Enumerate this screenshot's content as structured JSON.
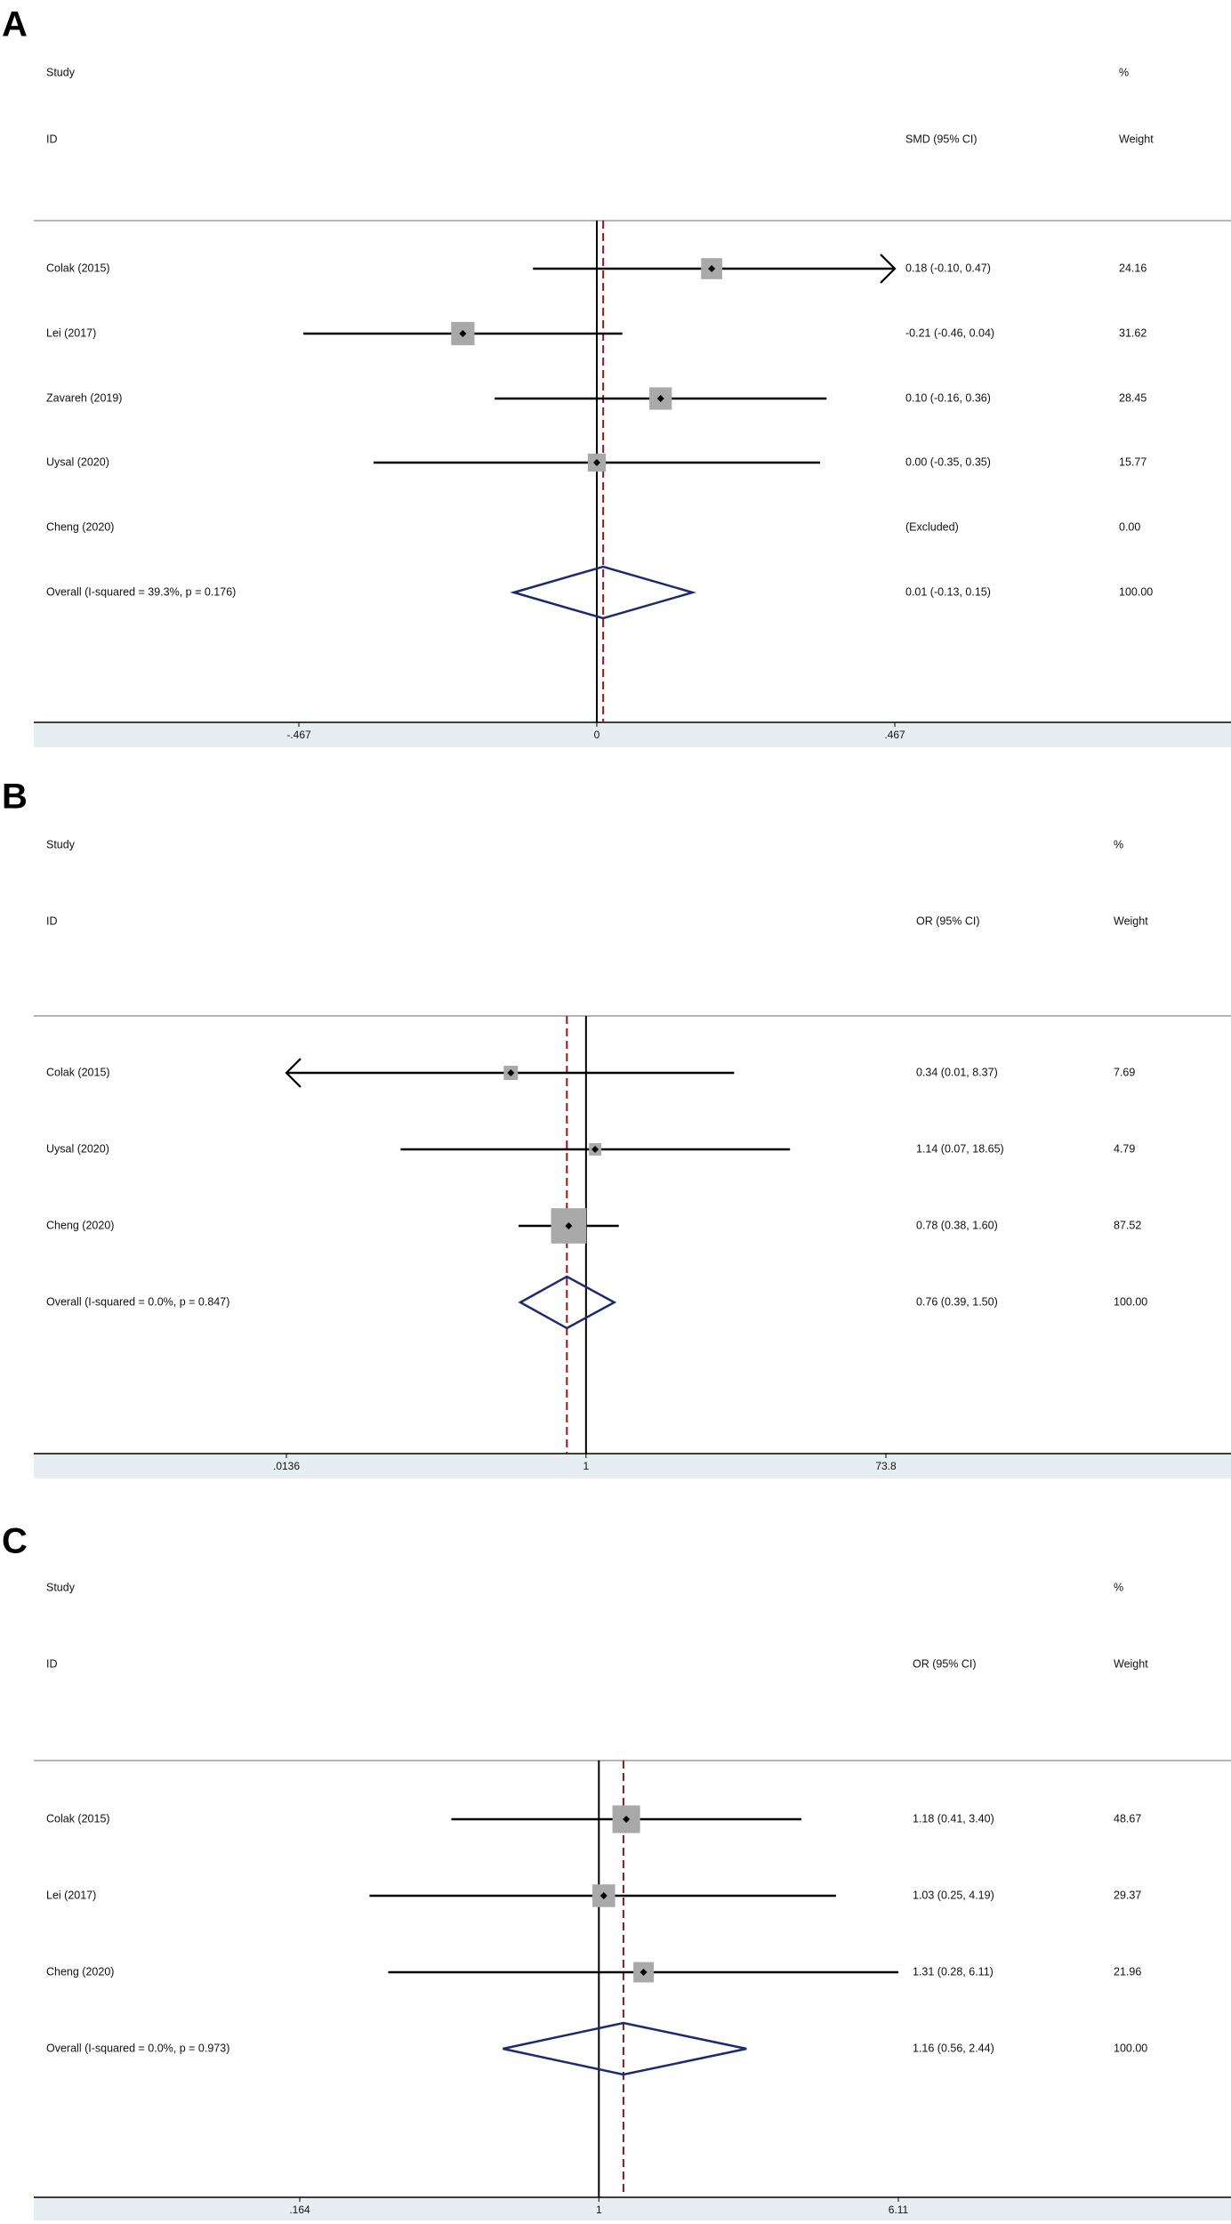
{
  "panels": [
    {
      "label": "A",
      "header": {
        "study": "Study",
        "id": "ID",
        "measure": "SMD (95% CI)",
        "pct": "%",
        "weight": "Weight"
      },
      "scale": "linear",
      "null_value": 0,
      "pooled": 0.01,
      "range": [
        -0.467,
        0.467
      ],
      "ticks": [
        "-.467",
        "0",
        ".467"
      ],
      "rows": [
        {
          "name": "Colak (2015)",
          "est": 0.18,
          "lo": -0.1,
          "hi": 0.47,
          "ci": "0.18 (-0.10, 0.47)",
          "w": "24.16",
          "weight": 24.16
        },
        {
          "name": "Lei (2017)",
          "est": -0.21,
          "lo": -0.46,
          "hi": 0.04,
          "ci": "-0.21 (-0.46, 0.04)",
          "w": "31.62",
          "weight": 31.62
        },
        {
          "name": "Zavareh (2019)",
          "est": 0.1,
          "lo": -0.16,
          "hi": 0.36,
          "ci": "0.10 (-0.16, 0.36)",
          "w": "28.45",
          "weight": 28.45
        },
        {
          "name": "Uysal (2020)",
          "est": 0.0,
          "lo": -0.35,
          "hi": 0.35,
          "ci": "0.00 (-0.35, 0.35)",
          "w": "15.77",
          "weight": 15.77
        },
        {
          "name": "Cheng (2020)",
          "est": null,
          "lo": null,
          "hi": null,
          "ci": "(Excluded)",
          "w": "0.00",
          "weight": 0
        },
        {
          "name": "Overall  (I-squared = 39.3%, p = 0.176)",
          "overall": true,
          "est": 0.01,
          "lo": -0.13,
          "hi": 0.15,
          "ci": "0.01 (-0.13, 0.15)",
          "w": "100.00",
          "weight": 100
        }
      ]
    },
    {
      "label": "B",
      "header": {
        "study": "Study",
        "id": "ID",
        "measure": "OR (95% CI)",
        "pct": "%",
        "weight": "Weight"
      },
      "scale": "log",
      "null_value": 1,
      "pooled": 0.76,
      "range": [
        0.0136,
        73.8
      ],
      "ticks": [
        ".0136",
        "1",
        "73.8"
      ],
      "rows": [
        {
          "name": "Colak (2015)",
          "est": 0.34,
          "lo": 0.01,
          "hi": 8.37,
          "ci": "0.34 (0.01, 8.37)",
          "w": "7.69",
          "weight": 7.69
        },
        {
          "name": "Uysal (2020)",
          "est": 1.14,
          "lo": 0.07,
          "hi": 18.65,
          "ci": "1.14 (0.07, 18.65)",
          "w": "4.79",
          "weight": 4.79
        },
        {
          "name": "Cheng (2020)",
          "est": 0.78,
          "lo": 0.38,
          "hi": 1.6,
          "ci": "0.78 (0.38, 1.60)",
          "w": "87.52",
          "weight": 87.52
        },
        {
          "name": "Overall  (I-squared = 0.0%, p = 0.847)",
          "overall": true,
          "est": 0.76,
          "lo": 0.39,
          "hi": 1.5,
          "ci": "0.76 (0.39, 1.50)",
          "w": "100.00",
          "weight": 100
        }
      ]
    },
    {
      "label": "C",
      "header": {
        "study": "Study",
        "id": "ID",
        "measure": "OR (95% CI)",
        "pct": "%",
        "weight": "Weight"
      },
      "scale": "log",
      "null_value": 1,
      "pooled": 1.16,
      "range": [
        0.164,
        6.11
      ],
      "ticks": [
        ".164",
        "1",
        "6.11"
      ],
      "rows": [
        {
          "name": "Colak (2015)",
          "est": 1.18,
          "lo": 0.41,
          "hi": 3.4,
          "ci": "1.18 (0.41, 3.40)",
          "w": "48.67",
          "weight": 48.67
        },
        {
          "name": "Lei (2017)",
          "est": 1.03,
          "lo": 0.25,
          "hi": 4.19,
          "ci": "1.03 (0.25, 4.19)",
          "w": "29.37",
          "weight": 29.37
        },
        {
          "name": "Cheng (2020)",
          "est": 1.31,
          "lo": 0.28,
          "hi": 6.11,
          "ci": "1.31 (0.28, 6.11)",
          "w": "21.96",
          "weight": 21.96
        },
        {
          "name": "Overall  (I-squared = 0.0%, p = 0.973)",
          "overall": true,
          "est": 1.16,
          "lo": 0.56,
          "hi": 2.44,
          "ci": "1.16 (0.56, 2.44)",
          "w": "100.00",
          "weight": 100
        }
      ]
    }
  ],
  "chart_data": [
    {
      "type": "forest",
      "panel": "A",
      "measure": "SMD (95% CI)",
      "null_value": 0,
      "xlim": [
        -0.467,
        0.467
      ],
      "x_tick_labels": [
        "-.467",
        "0",
        ".467"
      ],
      "studies": [
        {
          "name": "Colak (2015)",
          "estimate": 0.18,
          "ci_low": -0.1,
          "ci_high": 0.47,
          "weight": 24.16
        },
        {
          "name": "Lei (2017)",
          "estimate": -0.21,
          "ci_low": -0.46,
          "ci_high": 0.04,
          "weight": 31.62
        },
        {
          "name": "Zavareh (2019)",
          "estimate": 0.1,
          "ci_low": -0.16,
          "ci_high": 0.36,
          "weight": 28.45
        },
        {
          "name": "Uysal (2020)",
          "estimate": 0.0,
          "ci_low": -0.35,
          "ci_high": 0.35,
          "weight": 15.77
        },
        {
          "name": "Cheng (2020)",
          "estimate": null,
          "ci_low": null,
          "ci_high": null,
          "weight": 0.0,
          "note": "(Excluded)"
        }
      ],
      "overall": {
        "estimate": 0.01,
        "ci_low": -0.13,
        "ci_high": 0.15,
        "weight": 100.0,
        "i_squared": "39.3%",
        "p": "0.176"
      }
    },
    {
      "type": "forest",
      "panel": "B",
      "measure": "OR (95% CI)",
      "null_value": 1,
      "log_scale": true,
      "xlim": [
        0.0136,
        73.8
      ],
      "x_tick_labels": [
        ".0136",
        "1",
        "73.8"
      ],
      "studies": [
        {
          "name": "Colak (2015)",
          "estimate": 0.34,
          "ci_low": 0.01,
          "ci_high": 8.37,
          "weight": 7.69
        },
        {
          "name": "Uysal (2020)",
          "estimate": 1.14,
          "ci_low": 0.07,
          "ci_high": 18.65,
          "weight": 4.79
        },
        {
          "name": "Cheng (2020)",
          "estimate": 0.78,
          "ci_low": 0.38,
          "ci_high": 1.6,
          "weight": 87.52
        }
      ],
      "overall": {
        "estimate": 0.76,
        "ci_low": 0.39,
        "ci_high": 1.5,
        "weight": 100.0,
        "i_squared": "0.0%",
        "p": "0.847"
      }
    },
    {
      "type": "forest",
      "panel": "C",
      "measure": "OR (95% CI)",
      "null_value": 1,
      "log_scale": true,
      "xlim": [
        0.164,
        6.11
      ],
      "x_tick_labels": [
        ".164",
        "1",
        "6.11"
      ],
      "studies": [
        {
          "name": "Colak (2015)",
          "estimate": 1.18,
          "ci_low": 0.41,
          "ci_high": 3.4,
          "weight": 48.67
        },
        {
          "name": "Lei (2017)",
          "estimate": 1.03,
          "ci_low": 0.25,
          "ci_high": 4.19,
          "weight": 29.37
        },
        {
          "name": "Cheng (2020)",
          "estimate": 1.31,
          "ci_low": 0.28,
          "ci_high": 6.11,
          "weight": 21.96
        }
      ],
      "overall": {
        "estimate": 1.16,
        "ci_low": 0.56,
        "ci_high": 2.44,
        "weight": 100.0,
        "i_squared": "0.0%",
        "p": "0.973"
      }
    }
  ],
  "colors": {
    "axis": "#000000",
    "pooled_line": "#8b1a1a",
    "diamond": "#1c2a6e",
    "box": "#a9a9a9",
    "axis_band": "#e6eef1",
    "separator": "#b5b5b5"
  }
}
